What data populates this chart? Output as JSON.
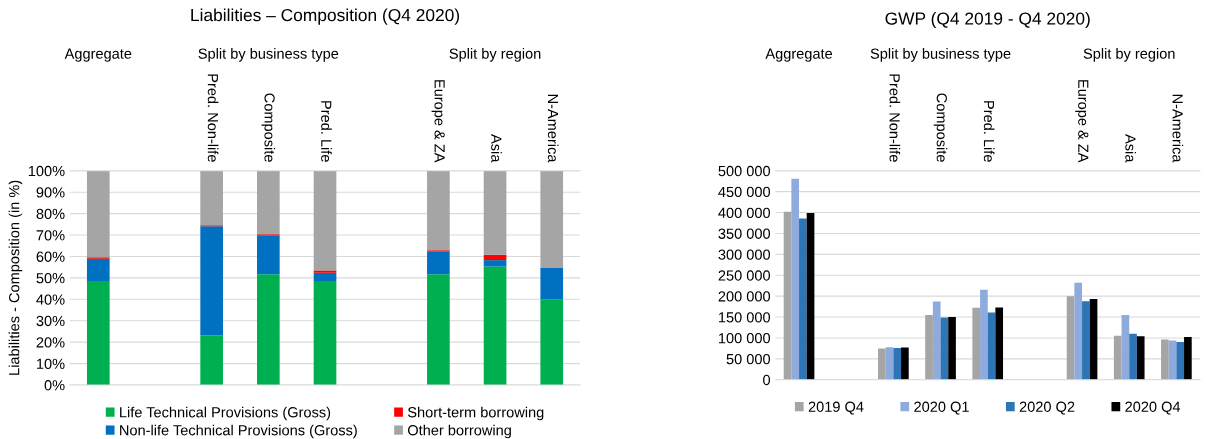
{
  "chart_data": [
    {
      "type": "bar",
      "title": "Liabilities – Composition (Q4 2020)",
      "ylabel": "Liabilities - Composition (in %)",
      "stacked": true,
      "categories": [
        null,
        null,
        "Pred. Non-life",
        "Composite",
        "Pred. Life",
        null,
        "Europe & ZA",
        "Asia",
        "N-America"
      ],
      "annotations": [
        "Aggregate",
        "Split by business type",
        "Split by region"
      ],
      "series": [
        {
          "name": "Life Technical Provisions (Gross)",
          "color": "#00b050",
          "values": [
            48.5,
            null,
            23.1,
            51.7,
            48.5,
            null,
            51.7,
            55.3,
            39.9
          ]
        },
        {
          "name": "Non-life Technical Provisions (Gross)",
          "color": "#0070c0",
          "values": [
            10.4,
            null,
            51.0,
            18.2,
            3.9,
            null,
            10.7,
            3.0,
            14.7
          ]
        },
        {
          "name": "Short-term borrowing",
          "color": "#ff0000",
          "values": [
            0.7,
            null,
            0.5,
            0.5,
            1.1,
            null,
            0.5,
            2.5,
            null
          ]
        },
        {
          "name": "Other borrowing",
          "color": "#a5a5a5",
          "values": [
            40.4,
            null,
            25.4,
            29.6,
            46.5,
            null,
            37.1,
            39.2,
            45.4
          ]
        }
      ],
      "ylim": [
        0,
        100
      ],
      "yticks": [
        {
          "value": 0,
          "label": "0%"
        },
        {
          "value": 10,
          "label": "10%"
        },
        {
          "value": 20,
          "label": "20%"
        },
        {
          "value": 30,
          "label": "30%"
        },
        {
          "value": 40,
          "label": "40%"
        },
        {
          "value": 50,
          "label": "50%"
        },
        {
          "value": 60,
          "label": "60%"
        },
        {
          "value": 70,
          "label": "70%"
        },
        {
          "value": 80,
          "label": "80%"
        },
        {
          "value": 90,
          "label": "90%"
        },
        {
          "value": 100,
          "label": "100%"
        }
      ],
      "grid": "y",
      "legend": "bottom"
    },
    {
      "type": "bar",
      "title": "GWP (Q4 2019 - Q4 2020)",
      "categories": [
        null,
        null,
        "Pred. Non-life",
        "Composite",
        "Pred. Life",
        null,
        "Europe & ZA",
        "Asia",
        "N-America"
      ],
      "annotations": [
        "Aggregate",
        "Split by business type",
        "Split by region"
      ],
      "series": [
        {
          "name": "2019 Q4",
          "color": "#a5a5a5",
          "values": [
            402000,
            null,
            75000,
            155000,
            172000,
            null,
            200000,
            105000,
            96000
          ]
        },
        {
          "name": "2020 Q1",
          "color": "#8faadc",
          "values": [
            481000,
            null,
            78000,
            187000,
            215500,
            null,
            232000,
            155000,
            94000
          ]
        },
        {
          "name": "2020 Q2",
          "color": "#2e75b6",
          "values": [
            386000,
            null,
            76000,
            149000,
            161000,
            null,
            188000,
            110000,
            90000
          ]
        },
        {
          "name": "2020 Q4",
          "color": "#000000",
          "values": [
            399000,
            null,
            77000,
            150000,
            173000,
            null,
            193000,
            104000,
            102000
          ]
        }
      ],
      "ylim": [
        0,
        500000
      ],
      "yticks": [
        0,
        {
          "value": 50000,
          "label": "50 000"
        },
        {
          "value": 100000,
          "label": "100 000"
        },
        {
          "value": 150000,
          "label": "150 000"
        },
        {
          "value": 200000,
          "label": "200 000"
        },
        {
          "value": 250000,
          "label": "250 000"
        },
        {
          "value": 300000,
          "label": "300 000"
        },
        {
          "value": 350000,
          "label": "350 000"
        },
        {
          "value": 400000,
          "label": "400 000"
        },
        {
          "value": 450000,
          "label": "450 000"
        },
        {
          "value": 500000,
          "label": "500 000"
        }
      ],
      "grid": "y",
      "legend": "bottom"
    }
  ]
}
